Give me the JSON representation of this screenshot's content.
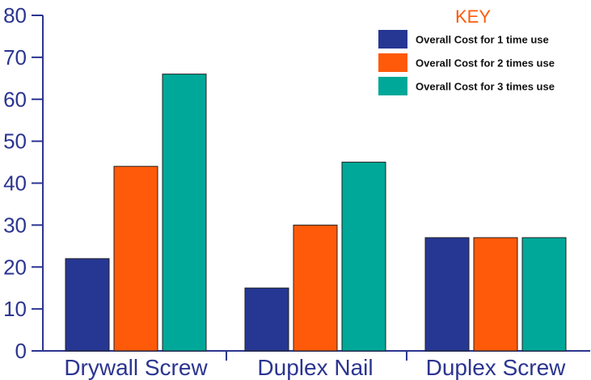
{
  "chart_data": {
    "type": "bar",
    "categories": [
      "Drywall Screw",
      "Duplex Nail",
      "Duplex Screw"
    ],
    "series": [
      {
        "name": "Overall Cost for 1 time use",
        "values": [
          22,
          15,
          27
        ],
        "color": "#263793"
      },
      {
        "name": "Overall Cost for 2 times use",
        "values": [
          44,
          30,
          27
        ],
        "color": "#ff5a0a"
      },
      {
        "name": "Overall Cost for 3 times use",
        "values": [
          66,
          45,
          27
        ],
        "color": "#00a899"
      }
    ],
    "title": "",
    "xlabel": "",
    "ylabel": "",
    "ylim": [
      0,
      80
    ],
    "yticks": [
      "0",
      "10",
      "20",
      "30",
      "40",
      "50",
      "60",
      "70",
      "80"
    ],
    "legend_title": "KEY",
    "legend_placement": "top-right",
    "grid": false,
    "axis_color": "#2b3590"
  }
}
